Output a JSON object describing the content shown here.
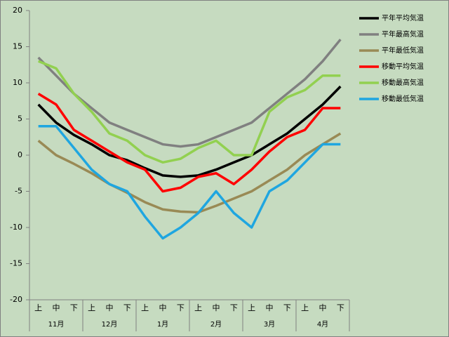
{
  "chart_data": {
    "type": "line",
    "categories": [
      "上",
      "中",
      "下",
      "上",
      "中",
      "下",
      "上",
      "中",
      "下",
      "上",
      "中",
      "下",
      "上",
      "中",
      "下",
      "上",
      "中",
      "下"
    ],
    "groups": [
      "11月",
      "12月",
      "1月",
      "2月",
      "3月",
      "4月"
    ],
    "ylim": [
      -20,
      20
    ],
    "yticks": [
      -20,
      -15,
      -10,
      -5,
      0,
      5,
      10,
      15,
      20
    ],
    "series": [
      {
        "name": "平年平均気温",
        "color": "#000000",
        "values": [
          7,
          4.5,
          2.8,
          1.5,
          0,
          -0.7,
          -1.8,
          -2.8,
          -3,
          -2.8,
          -2,
          -1,
          0,
          1.5,
          3,
          5,
          7,
          9.5
        ]
      },
      {
        "name": "平年最高気温",
        "color": "#808080",
        "values": [
          13.5,
          11,
          8.5,
          6.5,
          4.5,
          3.5,
          2.5,
          1.5,
          1.2,
          1.5,
          2.5,
          3.5,
          4.5,
          6.5,
          8.5,
          10.5,
          13,
          16
        ]
      },
      {
        "name": "平年最低気温",
        "color": "#998a55",
        "values": [
          2,
          0,
          -1.2,
          -2.5,
          -4,
          -5.2,
          -6.5,
          -7.5,
          -7.8,
          -7.9,
          -7,
          -6,
          -5,
          -3.5,
          -2,
          0,
          1.5,
          3
        ]
      },
      {
        "name": "移動平均気温",
        "color": "#ff0000",
        "values": [
          8.5,
          7,
          3.5,
          2,
          0.5,
          -1,
          -2,
          -5,
          -4.5,
          -3,
          -2.5,
          -4,
          -2,
          0.5,
          2.5,
          3.5,
          6.5,
          6.5
        ]
      },
      {
        "name": "移動最高気温",
        "color": "#92d050",
        "values": [
          13,
          12,
          8.5,
          6,
          3,
          2,
          0,
          -1,
          -0.5,
          1,
          2,
          0,
          0,
          6,
          8,
          9,
          11,
          11
        ]
      },
      {
        "name": "移動最低気温",
        "color": "#1fa6e0",
        "values": [
          4,
          4,
          1,
          -2,
          -4,
          -5,
          -8.5,
          -11.5,
          -10,
          -8,
          -5,
          -8,
          -10,
          -5,
          -3.5,
          -1,
          1.5,
          1.5
        ]
      }
    ]
  }
}
